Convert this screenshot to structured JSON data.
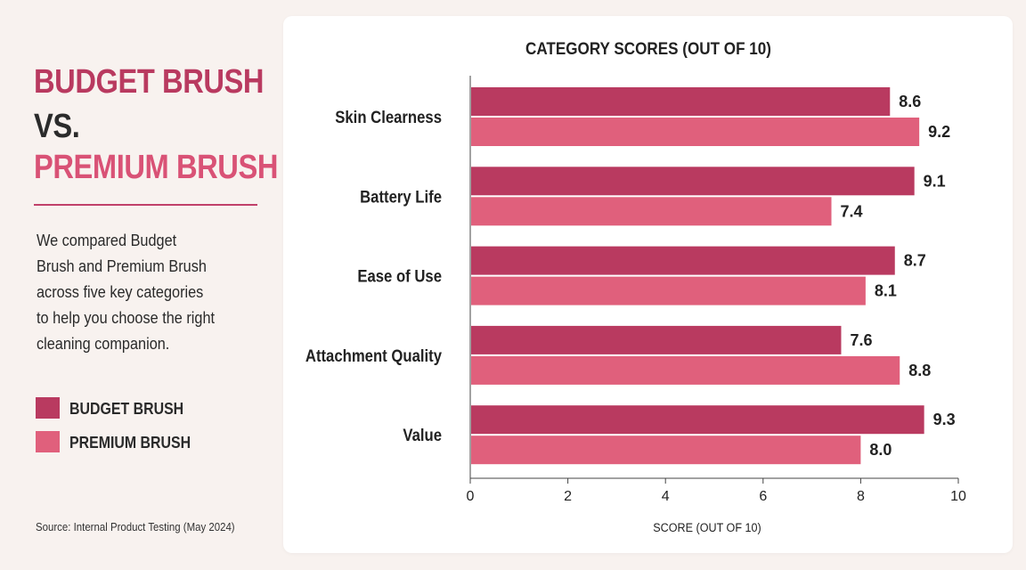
{
  "left_panel": {
    "title_line1": "BUDGET BRUSH",
    "title_line2": "VS.",
    "title_line3": "PREMIUM BRUSH",
    "description": "We compared Budget Brush and Premium Brush across five key categories to help you choose the right cleaning companion.",
    "source": "Source: Internal Product Testing (May 2024)"
  },
  "colors": {
    "budget": "#b93a60",
    "premium": "#e0607c",
    "title_dark": "#2b2b2b",
    "background": "#f8f2ef"
  },
  "chart_data": {
    "type": "bar",
    "orientation": "horizontal",
    "title": "CATEGORY SCORES (OUT OF 10)",
    "xlabel": "SCORE (OUT OF 10)",
    "ylabel": "",
    "categories": [
      "Skin Clearness",
      "Battery Life",
      "Ease of Use",
      "Attachment Quality",
      "Value"
    ],
    "series": [
      {
        "name": "BUDGET BRUSH",
        "color": "#b93a60",
        "values": [
          8.6,
          9.1,
          8.7,
          7.6,
          9.3
        ],
        "labels": [
          "8.6",
          "9.1",
          "8.7",
          "7.6",
          "9.3"
        ]
      },
      {
        "name": "PREMIUM BRUSH",
        "color": "#e0607c",
        "values": [
          9.2,
          7.4,
          8.1,
          8.8,
          8.0
        ],
        "labels": [
          "9.2",
          "7.4",
          "8.1",
          "8.8",
          "8.0"
        ]
      }
    ],
    "xlim": [
      0,
      10
    ],
    "xticks": [
      0,
      2,
      4,
      6,
      8,
      10
    ],
    "xtick_labels": [
      "0",
      "2",
      "4",
      "6",
      "8",
      "10"
    ],
    "grid": false,
    "legend_position": "left"
  }
}
